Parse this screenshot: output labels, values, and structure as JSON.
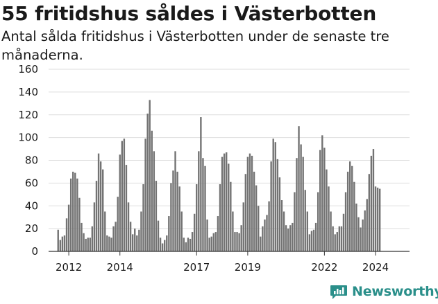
{
  "header": {
    "title": "55 fritidshus såldes i Västerbotten",
    "subtitle": "Antal sålda fritidshus i Västerbotten under de senaste tre månaderna."
  },
  "brand": {
    "name": "Newsworthy",
    "color": "#2a8f8a"
  },
  "colors": {
    "bar": "#737373",
    "highlight": "#2b9aa0",
    "grid": "#dddddd",
    "axis": "#333333"
  },
  "chart_data": {
    "type": "bar",
    "ylim": [
      0,
      160
    ],
    "yticks": [
      0,
      20,
      40,
      60,
      80,
      100,
      120,
      140,
      160
    ],
    "xlim": [
      2011.21,
      2025.33
    ],
    "xticks": [
      {
        "value": 2012.0,
        "label": "2012"
      },
      {
        "value": 2014.0,
        "label": "2014"
      },
      {
        "value": 2017.0,
        "label": "2017"
      },
      {
        "value": 2019.0,
        "label": "2019"
      },
      {
        "value": 2022.0,
        "label": "2022"
      },
      {
        "value": 2024.0,
        "label": "2024"
      }
    ],
    "start": "2011-08",
    "values": [
      19,
      10,
      13,
      14,
      29,
      41,
      64,
      70,
      69,
      64,
      47,
      25,
      16,
      11,
      12,
      12,
      22,
      43,
      62,
      86,
      79,
      72,
      35,
      14,
      13,
      12,
      22,
      26,
      48,
      85,
      97,
      99,
      76,
      43,
      26,
      15,
      20,
      14,
      19,
      35,
      59,
      99,
      121,
      133,
      106,
      88,
      62,
      27,
      12,
      7,
      10,
      14,
      31,
      60,
      71,
      88,
      70,
      57,
      35,
      12,
      8,
      12,
      11,
      17,
      33,
      59,
      88,
      118,
      82,
      75,
      28,
      12,
      13,
      16,
      17,
      31,
      59,
      83,
      86,
      87,
      77,
      61,
      35,
      17,
      17,
      16,
      23,
      43,
      68,
      83,
      86,
      84,
      70,
      58,
      40,
      13,
      22,
      28,
      32,
      44,
      79,
      99,
      96,
      81,
      65,
      45,
      35,
      23,
      20,
      23,
      25,
      52,
      82,
      110,
      94,
      83,
      54,
      35,
      15,
      18,
      19,
      25,
      52,
      89,
      102,
      91,
      72,
      57,
      35,
      22,
      15,
      17,
      22,
      22,
      33,
      52,
      70,
      79,
      75,
      61,
      42,
      30,
      21,
      28,
      36,
      46,
      68,
      84,
      90,
      57,
      56,
      55
    ],
    "highlight_index": 152,
    "highlight_label": "55"
  }
}
